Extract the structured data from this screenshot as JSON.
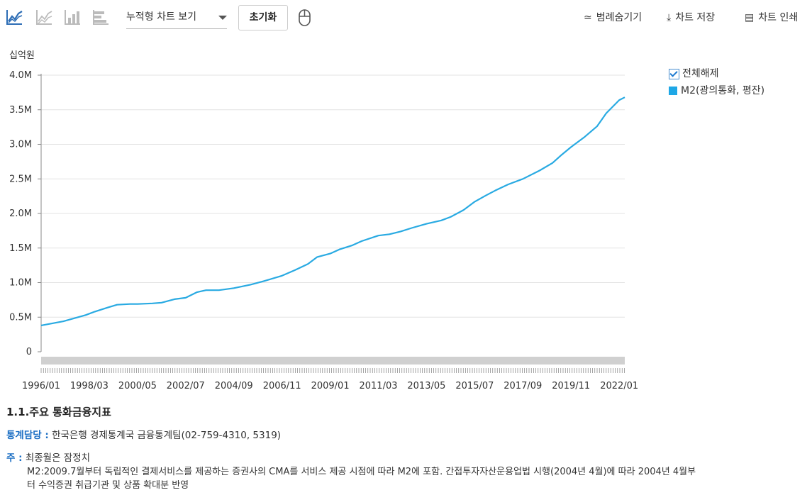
{
  "toolbar": {
    "chart_type_select": "누적형 차트 보기",
    "reset_label": "초기화",
    "hide_legend_label": "범례숨기기",
    "save_label": "차트 저장",
    "print_label": "차트 인쇄",
    "icons": [
      "line-chart-icon",
      "area-chart-icon",
      "bar-chart-icon",
      "horizontal-bar-chart-icon",
      "mouse-icon",
      "legend-hide-icon",
      "download-icon",
      "printer-icon"
    ]
  },
  "legend": {
    "deselect_all": "전체해제",
    "series_name": "M2(광의통화, 평잔)"
  },
  "chart_data": {
    "type": "line",
    "unit_label": "십억원",
    "y_ticks": [
      "4.0M",
      "3.5M",
      "3.0M",
      "2.5M",
      "2.0M",
      "1.5M",
      "1.0M",
      "0.5M",
      "0"
    ],
    "ylim": [
      0,
      4000000
    ],
    "x_ticks": [
      "1996/01",
      "1998/03",
      "2000/05",
      "2002/07",
      "2004/09",
      "2006/11",
      "2009/01",
      "2011/03",
      "2013/05",
      "2015/07",
      "2017/09",
      "2019/11",
      "2022/01"
    ],
    "series": [
      {
        "name": "M2(광의통화, 평잔)",
        "color": "#29aae2",
        "points": [
          [
            "1996/01",
            380000
          ],
          [
            "1997/01",
            440000
          ],
          [
            "1998/01",
            530000
          ],
          [
            "1998/06",
            580000
          ],
          [
            "1999/01",
            640000
          ],
          [
            "1999/06",
            680000
          ],
          [
            "2000/01",
            690000
          ],
          [
            "2000/05",
            690000
          ],
          [
            "2001/01",
            700000
          ],
          [
            "2001/06",
            710000
          ],
          [
            "2002/01",
            760000
          ],
          [
            "2002/07",
            780000
          ],
          [
            "2003/01",
            860000
          ],
          [
            "2003/06",
            890000
          ],
          [
            "2004/01",
            890000
          ],
          [
            "2004/09",
            920000
          ],
          [
            "2005/06",
            970000
          ],
          [
            "2006/01",
            1020000
          ],
          [
            "2006/11",
            1100000
          ],
          [
            "2007/06",
            1180000
          ],
          [
            "2008/01",
            1270000
          ],
          [
            "2008/06",
            1370000
          ],
          [
            "2009/01",
            1420000
          ],
          [
            "2009/06",
            1480000
          ],
          [
            "2010/01",
            1540000
          ],
          [
            "2010/06",
            1600000
          ],
          [
            "2011/03",
            1680000
          ],
          [
            "2011/09",
            1700000
          ],
          [
            "2012/03",
            1740000
          ],
          [
            "2012/09",
            1790000
          ],
          [
            "2013/05",
            1850000
          ],
          [
            "2014/01",
            1900000
          ],
          [
            "2014/06",
            1950000
          ],
          [
            "2015/01",
            2050000
          ],
          [
            "2015/07",
            2170000
          ],
          [
            "2016/01",
            2260000
          ],
          [
            "2016/06",
            2330000
          ],
          [
            "2017/01",
            2420000
          ],
          [
            "2017/09",
            2500000
          ],
          [
            "2018/06",
            2620000
          ],
          [
            "2019/01",
            2730000
          ],
          [
            "2019/06",
            2850000
          ],
          [
            "2019/11",
            2960000
          ],
          [
            "2020/06",
            3100000
          ],
          [
            "2021/01",
            3260000
          ],
          [
            "2021/06",
            3450000
          ],
          [
            "2022/01",
            3640000
          ],
          [
            "2022/04",
            3680000
          ]
        ]
      }
    ]
  },
  "meta": {
    "stat_title": "1.1.주요 통화금융지표",
    "contact_label": "통계담당 :",
    "contact_text": "한국은행 경제통계국 금융통계팀(02-759-4310, 5319)",
    "note_label": "주 :",
    "note_line1": "최종월은 잠정치",
    "note_line2": "M2:2009.7월부터 독립적인 결제서비스를 제공하는 증권사의 CMA를 서비스 제공 시점에 따라 M2에 포함. 간접투자자산운용업법 시행(2004년 4월)에 따라 2004년 4월부",
    "note_line3": "터 수익증권 취급기관 및 상품 확대분 반영"
  }
}
